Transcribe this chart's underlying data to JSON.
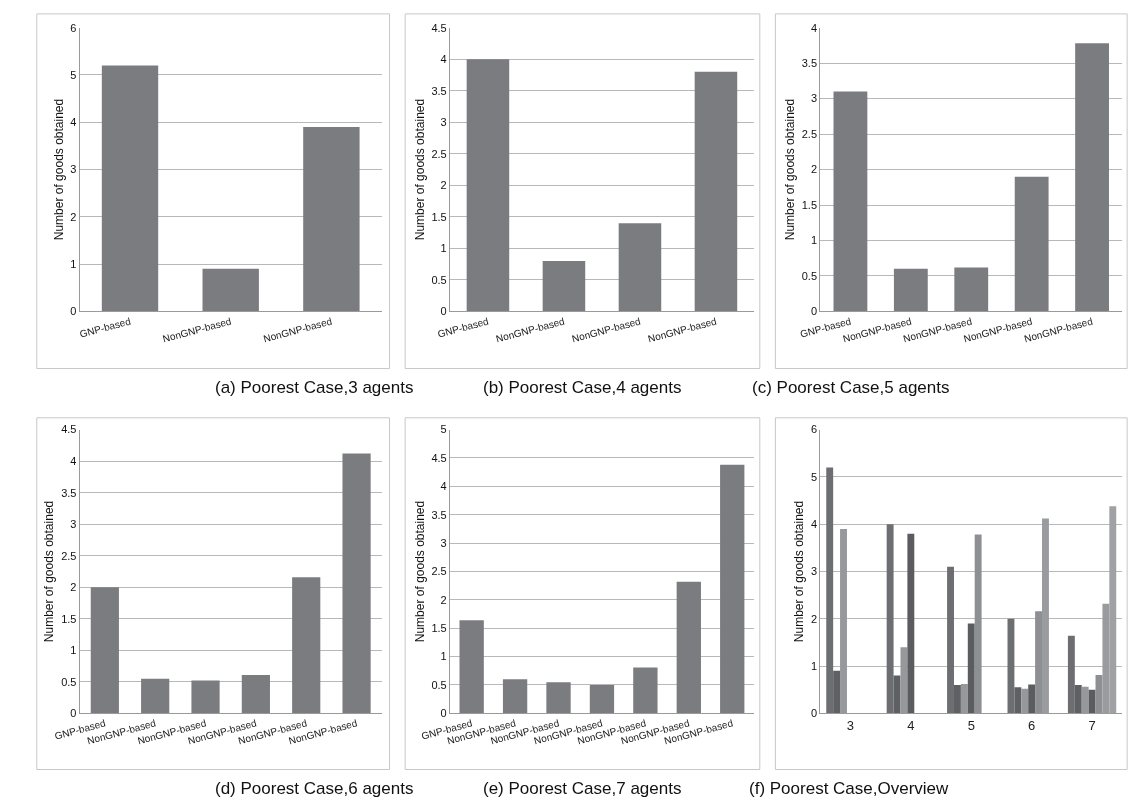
{
  "chart_data": [
    {
      "type": "bar",
      "title": "(a) Poorest Case,3 agents",
      "ylabel": "Number of goods obtained",
      "categories": [
        "GNP-based",
        "NonGNP-based",
        "NonGNP-based"
      ],
      "values": [
        5.2,
        0.9,
        3.9
      ],
      "color": "#7b7c80",
      "ylim": [
        0,
        6
      ],
      "yticks": [
        0,
        1,
        2,
        3,
        4,
        5,
        6
      ],
      "grid": "y"
    },
    {
      "type": "bar",
      "title": "(b) Poorest Case,4 agents",
      "ylabel": "Number of goods obtained",
      "categories": [
        "GNP-based",
        "NonGNP-based",
        "NonGNP-based",
        "NonGNP-based"
      ],
      "values": [
        4.0,
        0.8,
        1.4,
        3.8
      ],
      "color": "#7b7c80",
      "ylim": [
        0,
        4.5
      ],
      "yticks": [
        0,
        0.5,
        1,
        1.5,
        2,
        2.5,
        3,
        3.5,
        4,
        4.5
      ],
      "grid": "y"
    },
    {
      "type": "bar",
      "title": "(c) Poorest Case,5 agents",
      "ylabel": "Number of goods obtained",
      "categories": [
        "GNP-based",
        "NonGNP-based",
        "NonGNP-based",
        "NonGNP-based",
        "NonGNP-based"
      ],
      "values": [
        3.1,
        0.6,
        0.62,
        1.9,
        3.78
      ],
      "color": "#7b7c80",
      "ylim": [
        0,
        4
      ],
      "yticks": [
        0,
        0.5,
        1,
        1.5,
        2,
        2.5,
        3,
        3.5,
        4
      ],
      "grid": "y"
    },
    {
      "type": "bar",
      "title": "(d) Poorest Case,6 agents",
      "ylabel": "Number of goods obtained",
      "categories": [
        "GNP-based",
        "NonGNP-based",
        "NonGNP-based",
        "NonGNP-based",
        "NonGNP-based",
        "NonGNP-based"
      ],
      "values": [
        2.0,
        0.55,
        0.52,
        0.61,
        2.16,
        4.12
      ],
      "color": "#7b7c80",
      "ylim": [
        0,
        4.5
      ],
      "yticks": [
        0,
        0.5,
        1,
        1.5,
        2,
        2.5,
        3,
        3.5,
        4,
        4.5
      ],
      "grid": "y"
    },
    {
      "type": "bar",
      "title": "(e) Poorest Case,7 agents",
      "ylabel": "Number of goods obtained",
      "categories": [
        "GNP-based",
        "NonGNP-based",
        "NonGNP-based",
        "NonGNP-based",
        "NonGNP-based",
        "NonGNP-based",
        "NonGNP-based"
      ],
      "values": [
        1.64,
        0.6,
        0.55,
        0.5,
        0.81,
        2.32,
        4.38
      ],
      "color": "#7b7c80",
      "ylim": [
        0,
        5
      ],
      "yticks": [
        0,
        0.5,
        1,
        1.5,
        2,
        2.5,
        3,
        3.5,
        4,
        4.5,
        5
      ],
      "grid": "y"
    },
    {
      "type": "bar",
      "title": "(f) Poorest Case,Overview",
      "ylabel": "Number of goods obtained",
      "categories": [
        "3",
        "4",
        "5",
        "6",
        "7"
      ],
      "ylim": [
        0,
        6
      ],
      "yticks": [
        0,
        1,
        2,
        3,
        4,
        5,
        6
      ],
      "grid": "y",
      "series": [
        {
          "color": "#6d6e72",
          "values": [
            5.2,
            4.0,
            3.1,
            2.0,
            1.64
          ]
        },
        {
          "color": "#5f6064",
          "values": [
            0.9,
            0.8,
            0.6,
            0.55,
            0.6
          ]
        },
        {
          "color": "#97989c",
          "values": [
            3.9,
            1.4,
            0.62,
            0.52,
            0.56
          ]
        },
        {
          "color": "#5b5c60",
          "values": [
            null,
            3.8,
            1.9,
            0.61,
            0.5
          ]
        },
        {
          "color": "#8e8f93",
          "values": [
            null,
            null,
            3.78,
            2.16,
            0.81
          ]
        },
        {
          "color": "#9a9b9f",
          "values": [
            null,
            null,
            null,
            4.12,
            2.32
          ]
        },
        {
          "color": "#a0a1a5",
          "values": [
            null,
            null,
            null,
            null,
            4.38
          ]
        }
      ]
    }
  ]
}
